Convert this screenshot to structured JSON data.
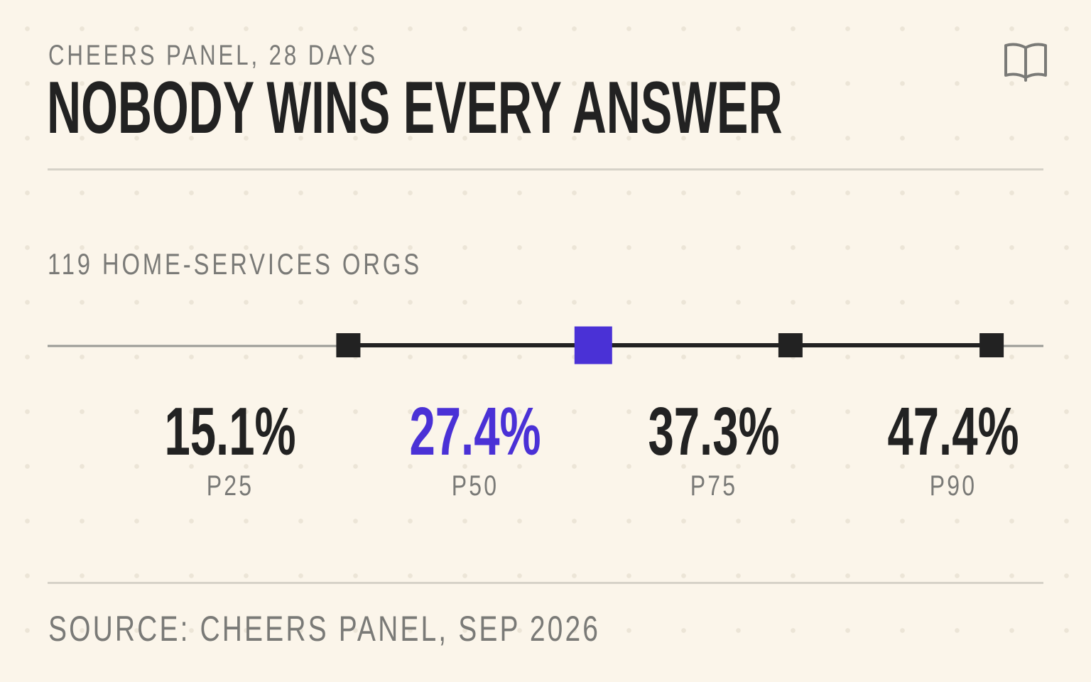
{
  "header": {
    "kicker": "CHEERS PANEL, 28 DAYS",
    "title": "NOBODY WINS EVERY ANSWER"
  },
  "icons": {
    "book": "book-open-icon"
  },
  "colors": {
    "background": "#fbf5ea",
    "ink": "#222222",
    "muted": "#7a7a77",
    "highlight": "#4a31d6",
    "rule": "#d6d2c8"
  },
  "chart_data": {
    "type": "dot-range",
    "subtitle": "119 HOME-SERVICES ORGS",
    "xlim": [
      0,
      50
    ],
    "highlight": "P50",
    "points": [
      {
        "label": "P25",
        "value": 15.1,
        "display": "15.1%"
      },
      {
        "label": "P50",
        "value": 27.4,
        "display": "27.4%"
      },
      {
        "label": "P75",
        "value": 37.3,
        "display": "37.3%"
      },
      {
        "label": "P90",
        "value": 47.4,
        "display": "47.4%"
      }
    ]
  },
  "footer": {
    "source": "SOURCE: CHEERS PANEL, SEP 2026"
  }
}
